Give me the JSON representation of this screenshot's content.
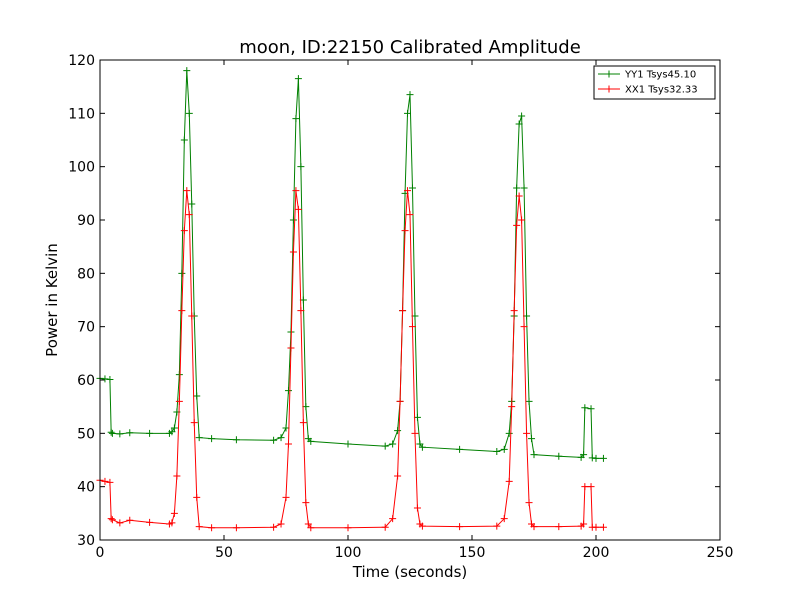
{
  "chart_data": {
    "type": "line",
    "title": "moon, ID:22150 Calibrated Amplitude",
    "xlabel": "Time (seconds)",
    "ylabel": "Power in Kelvin",
    "xlim": [
      0,
      250
    ],
    "ylim": [
      30,
      120
    ],
    "xticks": [
      0,
      50,
      100,
      150,
      200,
      250
    ],
    "yticks": [
      30,
      40,
      50,
      60,
      70,
      80,
      90,
      100,
      110,
      120
    ],
    "grid": false,
    "legend_position": "top-right",
    "marker": "plus",
    "series": [
      {
        "name": "YY1 Tsys45.10",
        "color": "#008000",
        "x": [
          0,
          2,
          4,
          4.5,
          5,
          8,
          12,
          20,
          28,
          29,
          30,
          31,
          32,
          33,
          34,
          35,
          36,
          37,
          38,
          39,
          40,
          45,
          55,
          70,
          73,
          75,
          76,
          77,
          78,
          79,
          80,
          81,
          82,
          83,
          84,
          85,
          100,
          115,
          118,
          120,
          121,
          122,
          123,
          124,
          125,
          126,
          127,
          128,
          129,
          130,
          145,
          160,
          163,
          165,
          166,
          167,
          168,
          169,
          170,
          171,
          172,
          173,
          174,
          175,
          185,
          194,
          195,
          195.5,
          198,
          198.5,
          200,
          203
        ],
        "y": [
          60.3,
          60.2,
          60.1,
          50.2,
          50.0,
          49.9,
          50.1,
          50.0,
          50.0,
          50.3,
          51.0,
          54.0,
          61.0,
          80.0,
          105.0,
          118.0,
          110.0,
          93.0,
          72.0,
          57.0,
          49.2,
          49.0,
          48.8,
          48.7,
          49.2,
          51.0,
          58.0,
          69.0,
          90.0,
          109.0,
          116.5,
          100.0,
          75.0,
          55.0,
          49.0,
          48.5,
          48.0,
          47.6,
          48.0,
          50.5,
          56.0,
          73.0,
          95.0,
          110.0,
          113.5,
          96.0,
          72.0,
          53.0,
          48.0,
          47.4,
          47.0,
          46.6,
          47.0,
          50.0,
          56.0,
          72.0,
          96.0,
          108.0,
          109.5,
          96.0,
          72.0,
          56.0,
          49.0,
          46.0,
          45.7,
          45.5,
          46.0,
          54.8,
          54.6,
          45.4,
          45.3,
          45.3
        ]
      },
      {
        "name": "XX1 Tsys32.33",
        "color": "#ff0000",
        "x": [
          0,
          2,
          4,
          4.5,
          5,
          8,
          12,
          20,
          28,
          29,
          30,
          31,
          32,
          33,
          34,
          35,
          36,
          37,
          38,
          39,
          40,
          45,
          55,
          70,
          73,
          75,
          76,
          77,
          78,
          79,
          80,
          81,
          82,
          83,
          84,
          85,
          100,
          115,
          118,
          120,
          121,
          122,
          123,
          124,
          125,
          126,
          127,
          128,
          129,
          130,
          145,
          160,
          163,
          165,
          166,
          167,
          168,
          169,
          170,
          171,
          172,
          173,
          174,
          175,
          185,
          194,
          195,
          195.5,
          198,
          198.5,
          200,
          203
        ],
        "y": [
          41.2,
          41.0,
          40.8,
          34.0,
          33.8,
          33.2,
          33.7,
          33.3,
          33.0,
          33.2,
          35.0,
          42.0,
          56.0,
          73.0,
          88.0,
          95.5,
          91.0,
          72.0,
          52.0,
          38.0,
          32.5,
          32.3,
          32.3,
          32.4,
          33.0,
          38.0,
          48.0,
          66.0,
          84.0,
          95.5,
          92.0,
          73.0,
          52.0,
          37.0,
          33.0,
          32.3,
          32.3,
          32.4,
          34.0,
          42.0,
          56.0,
          73.0,
          88.0,
          95.5,
          91.0,
          70.0,
          50.0,
          36.0,
          33.0,
          32.6,
          32.5,
          32.6,
          34.0,
          41.0,
          55.0,
          73.0,
          89.0,
          94.5,
          90.0,
          70.0,
          50.0,
          37.0,
          33.0,
          32.5,
          32.5,
          32.6,
          33.0,
          40.0,
          40.0,
          32.4,
          32.4,
          32.4
        ]
      }
    ]
  }
}
